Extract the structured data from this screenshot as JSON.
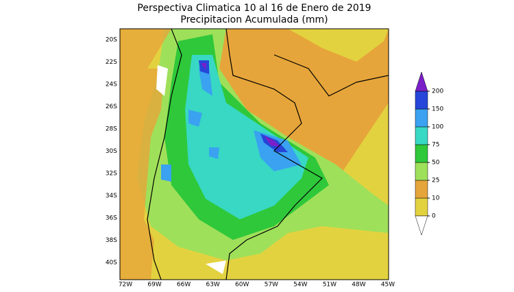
{
  "title": [
    "Perspectiva Climatica 10 al 16 de Enero de 2019",
    "Precipitacion Acumulada (mm)"
  ],
  "lat_labels": [
    "20S",
    "22S",
    "24S",
    "26S",
    "28S",
    "30S",
    "32S",
    "34S",
    "36S",
    "38S",
    "40S"
  ],
  "lon_labels": [
    "72W",
    "69W",
    "66W",
    "63W",
    "60W",
    "57W",
    "54W",
    "51W",
    "48W",
    "45W"
  ],
  "colorbar": {
    "levels": [
      0,
      10,
      25,
      50,
      75,
      100,
      150,
      200
    ],
    "colors": [
      "#e3d23f",
      "#e6a53a",
      "#9fe05a",
      "#2fc83a",
      "#38d8c4",
      "#3aa2f0",
      "#2546d8"
    ],
    "under_color": "#ffffff",
    "over_color": "#7b1fc8"
  }
}
